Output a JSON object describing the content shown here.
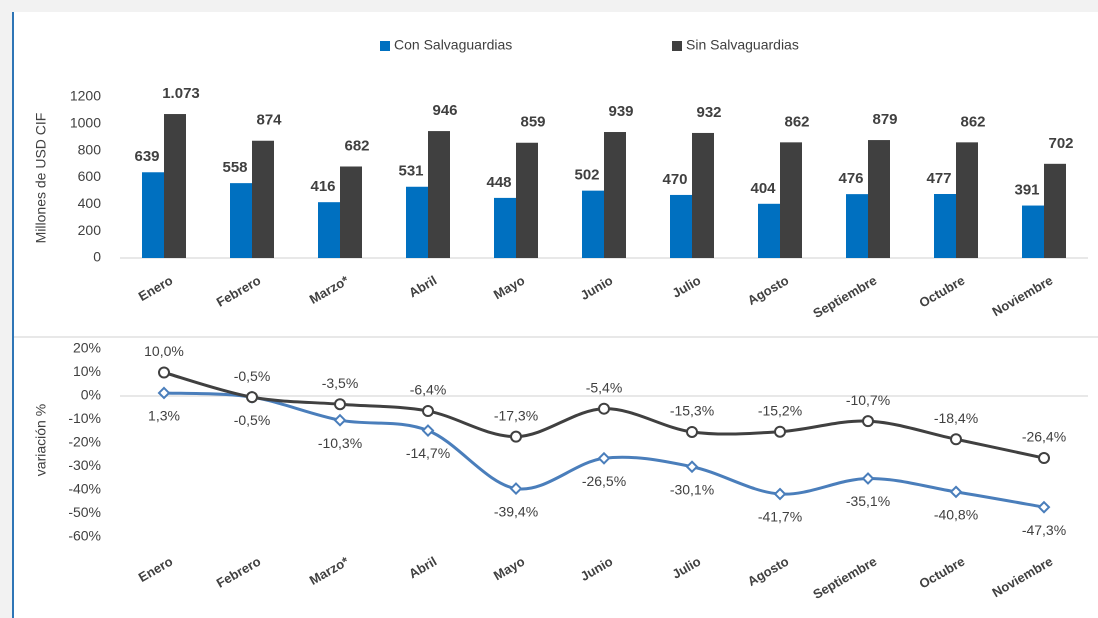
{
  "chart_data": [
    {
      "type": "bar",
      "y_label": "Millones de USD CIF",
      "categories": [
        "Enero",
        "Febrero",
        "Marzo*",
        "Abril",
        "Mayo",
        "Junio",
        "Julio",
        "Agosto",
        "Septiembre",
        "Octubre",
        "Noviembre"
      ],
      "series": [
        {
          "name": "Con Salvaguardias",
          "color": "#0070c0",
          "values": [
            639,
            558,
            416,
            531,
            448,
            502,
            470,
            404,
            476,
            477,
            391
          ]
        },
        {
          "name": "Sin Salvaguardias",
          "color": "#404040",
          "values": [
            1073,
            874,
            682,
            946,
            859,
            939,
            932,
            862,
            879,
            862,
            702
          ],
          "value_labels": [
            "1.073",
            "874",
            "682",
            "946",
            "859",
            "939",
            "932",
            "862",
            "879",
            "862",
            "702"
          ]
        }
      ],
      "ylim": [
        0,
        1200
      ],
      "yticks": [
        0,
        200,
        400,
        600,
        800,
        1000,
        1200
      ],
      "legend": "top"
    },
    {
      "type": "line",
      "y_label": "variación %",
      "categories": [
        "Enero",
        "Febrero",
        "Marzo*",
        "Abril",
        "Mayo",
        "Junio",
        "Julio",
        "Agosto",
        "Septiembre",
        "Octubre",
        "Noviembre"
      ],
      "series": [
        {
          "color": "#4a7ebb",
          "values": [
            1.3,
            -0.5,
            -10.3,
            -14.7,
            -39.4,
            -26.5,
            -30.1,
            -41.7,
            -35.1,
            -40.8,
            -47.3
          ],
          "value_labels": [
            "1,3%",
            "-0,5%",
            "-10,3%",
            "-14,7%",
            "-39,4%",
            "-26,5%",
            "-30,1%",
            "-41,7%",
            "-35,1%",
            "-40,8%",
            "-47,3%"
          ]
        },
        {
          "color": "#404040",
          "values": [
            10.0,
            -0.5,
            -3.5,
            -6.4,
            -17.3,
            -5.4,
            -15.3,
            -15.2,
            -10.7,
            -18.4,
            -26.4
          ],
          "value_labels": [
            "10,0%",
            "-0,5%",
            "-3,5%",
            "-6,4%",
            "-17,3%",
            "-5,4%",
            "-15,3%",
            "-15,2%",
            "-10,7%",
            "-18,4%",
            "-26,4%"
          ]
        }
      ],
      "ylim": [
        -60,
        20
      ],
      "yticks": [
        {
          "value": -60,
          "label": "-60%"
        },
        {
          "value": -50,
          "label": "-50%"
        },
        {
          "value": -40,
          "label": "-40%"
        },
        {
          "value": -30,
          "label": "-30%"
        },
        {
          "value": -20,
          "label": "-20%"
        },
        {
          "value": -10,
          "label": "-10%"
        },
        {
          "value": 0,
          "label": "0%"
        },
        {
          "value": 10,
          "label": "10%"
        },
        {
          "value": 20,
          "label": "20%"
        }
      ],
      "smooth": true
    }
  ]
}
